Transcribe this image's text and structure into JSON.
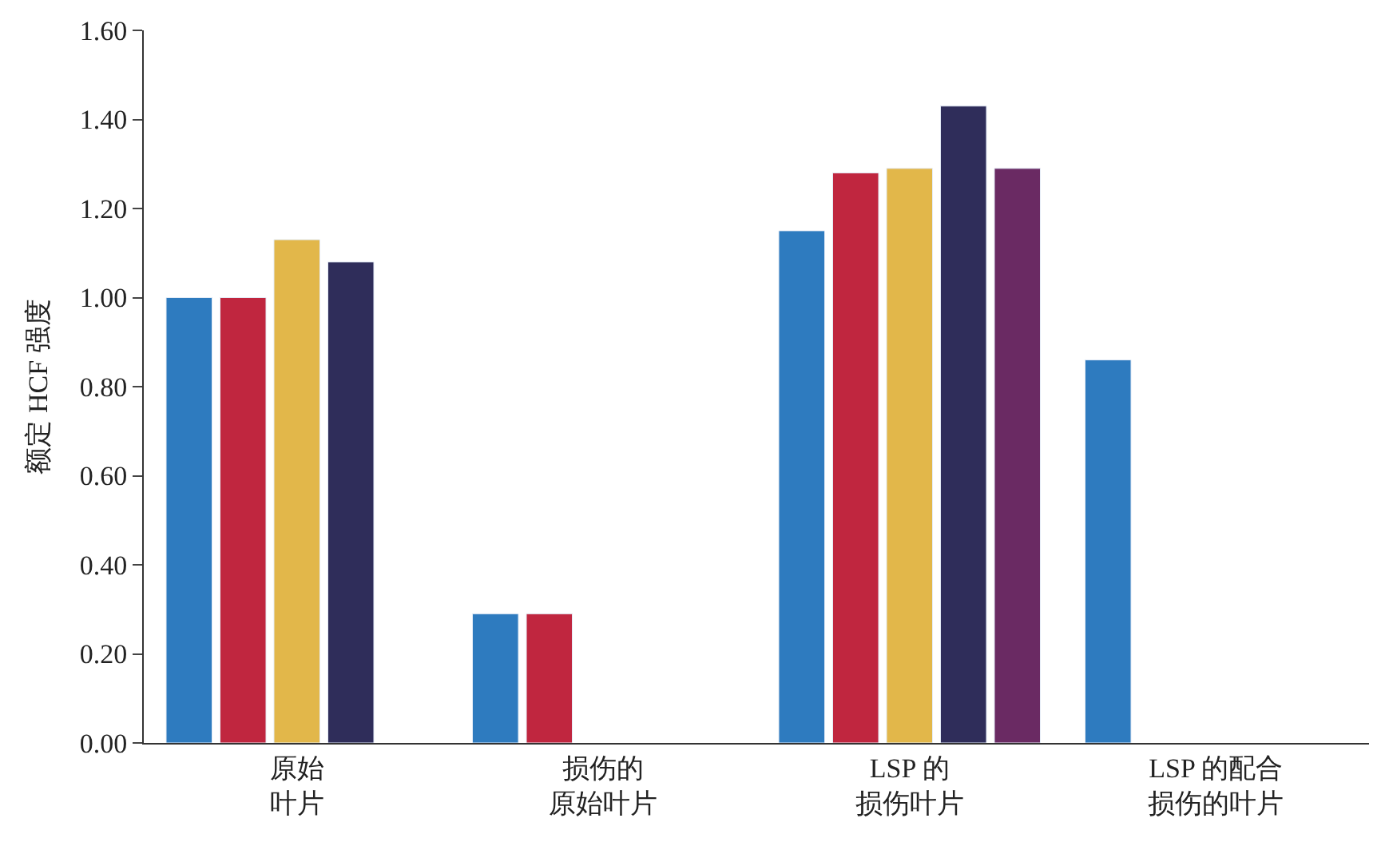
{
  "chart_data": {
    "type": "bar",
    "ylabel": "额定 HCF 强度",
    "categories": [
      "原始叶片",
      "损伤的原始叶片",
      "LSP 的损伤叶片",
      "LSP 的配合损伤的叶片"
    ],
    "series": [
      {
        "color": "#2e7bbf",
        "values": [
          1.0,
          0.29,
          1.15,
          0.86
        ]
      },
      {
        "color": "#c0263f",
        "values": [
          1.0,
          0.29,
          1.28,
          null
        ]
      },
      {
        "color": "#e2b74a",
        "values": [
          1.13,
          null,
          1.29,
          null
        ]
      },
      {
        "color": "#2f2d5a",
        "values": [
          1.08,
          null,
          1.43,
          null
        ]
      },
      {
        "color": "#6a2a63",
        "values": [
          null,
          null,
          1.29,
          null
        ]
      }
    ],
    "ylim": [
      0,
      1.6
    ],
    "yticks": [
      {
        "value": 0,
        "label": "0.00"
      },
      {
        "value": 0.2,
        "label": "0.20"
      },
      {
        "value": 0.4,
        "label": "0.40"
      },
      {
        "value": 0.6,
        "label": "0.60"
      },
      {
        "value": 0.8,
        "label": "0.80"
      },
      {
        "value": 1.0,
        "label": "1.00"
      },
      {
        "value": 1.2,
        "label": "1.20"
      },
      {
        "value": 1.4,
        "label": "1.40"
      },
      {
        "value": 1.6,
        "label": "1.60"
      }
    ]
  }
}
